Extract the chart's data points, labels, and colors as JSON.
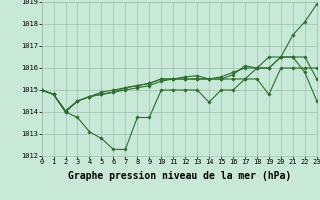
{
  "x": [
    0,
    1,
    2,
    3,
    4,
    5,
    6,
    7,
    8,
    9,
    10,
    11,
    12,
    13,
    14,
    15,
    16,
    17,
    18,
    19,
    20,
    21,
    22,
    23
  ],
  "line_zigzag": [
    1015.0,
    1014.8,
    1014.0,
    1013.75,
    1013.1,
    1012.8,
    1012.3,
    1012.3,
    1013.75,
    1013.75,
    1015.0,
    1015.0,
    1015.0,
    1015.0,
    1014.45,
    1015.0,
    1015.0,
    1015.5,
    1015.5,
    1014.8,
    1016.0,
    1016.0,
    1016.0,
    1016.0
  ],
  "line_smooth1": [
    1015.0,
    1014.8,
    1014.0,
    1014.5,
    1014.7,
    1014.8,
    1014.9,
    1015.0,
    1015.1,
    1015.2,
    1015.4,
    1015.5,
    1015.6,
    1015.65,
    1015.5,
    1015.5,
    1015.5,
    1015.5,
    1016.0,
    1016.0,
    1016.5,
    1016.5,
    1016.5,
    1015.5
  ],
  "line_smooth2": [
    1015.0,
    1014.8,
    1014.05,
    1014.5,
    1014.7,
    1014.8,
    1014.9,
    1015.1,
    1015.2,
    1015.3,
    1015.5,
    1015.5,
    1015.5,
    1015.5,
    1015.5,
    1015.5,
    1015.7,
    1016.1,
    1016.0,
    1016.5,
    1016.5,
    1017.5,
    1018.1,
    1018.9
  ],
  "line_smooth3": [
    1015.0,
    1014.8,
    1014.05,
    1014.5,
    1014.7,
    1014.9,
    1015.0,
    1015.1,
    1015.2,
    1015.3,
    1015.5,
    1015.5,
    1015.5,
    1015.5,
    1015.5,
    1015.6,
    1015.8,
    1016.0,
    1016.0,
    1016.0,
    1016.5,
    1016.5,
    1015.8,
    1014.5
  ],
  "ylim": [
    1012,
    1019
  ],
  "xlim": [
    0,
    23
  ],
  "yticks": [
    1012,
    1013,
    1014,
    1015,
    1016,
    1017,
    1018,
    1019
  ],
  "xticks": [
    0,
    1,
    2,
    3,
    4,
    5,
    6,
    7,
    8,
    9,
    10,
    11,
    12,
    13,
    14,
    15,
    16,
    17,
    18,
    19,
    20,
    21,
    22,
    23
  ],
  "xlabel": "Graphe pression niveau de la mer (hPa)",
  "line_color": "#2d6e2d",
  "marker": "D",
  "markersize": 1.8,
  "linewidth": 0.8,
  "bg_color": "#c8e8d8",
  "grid_color": "#9fbfaf",
  "tick_fontsize": 5.0,
  "xlabel_fontsize": 7.0
}
